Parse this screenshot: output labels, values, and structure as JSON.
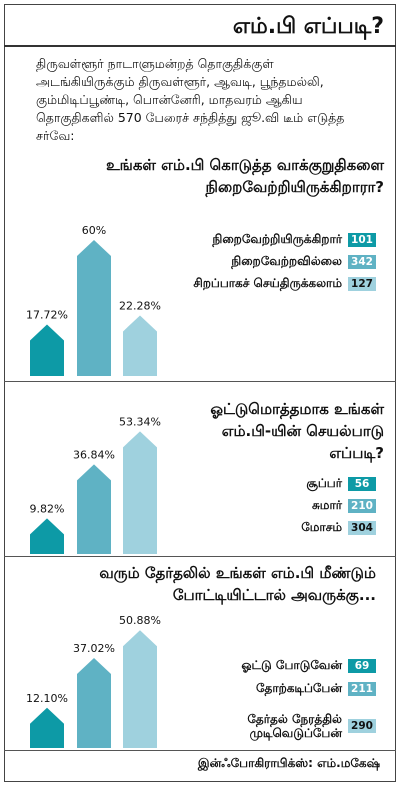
{
  "header": {
    "title": "எம்.பி எப்படி?"
  },
  "intro": "திருவள்ளூர் நாடாளுமன்றத் தொகுதிக்குள் அடங்கியிருக்கும் திருவள்ளூர், ஆவடி, பூந்தமல்லி, கும்மிடிப்பூண்டி, பொன்னேரி, மாதவரம் ஆகிய தொகுதிகளில் 570 பேரைச் சந்தித்து ஜூ.வி டீம் எடுத்த சர்வே:",
  "colors": {
    "c0": "#0d9aa6",
    "c1": "#5fb2c4",
    "c2": "#9fd1de"
  },
  "chart_data": [
    {
      "type": "bar",
      "question": "உங்கள் எம்.பி கொடுத்த வாக்குறுதிகளை நிறைவேற்றியிருக்கிறாரா?",
      "categories": [
        "நிறைவேற்றியிருக்கிறார்",
        "நிறைவேற்றவில்லை",
        "சிறப்பாகச் செய்திருக்கலாம்"
      ],
      "counts": [
        101,
        342,
        127
      ],
      "percent_labels": [
        "17.72%",
        "60%",
        "22.28%"
      ],
      "values": [
        17.72,
        60,
        22.28
      ]
    },
    {
      "type": "bar",
      "question": "ஓட்டுமொத்தமாக உங்கள் எம்.பி-யின் செயல்பாடு எப்படி?",
      "categories": [
        "சூப்பர்",
        "சுமார்",
        "மோசம்"
      ],
      "counts": [
        56,
        210,
        304
      ],
      "percent_labels": [
        "9.82%",
        "36.84%",
        "53.34%"
      ],
      "values": [
        9.82,
        36.84,
        53.34
      ]
    },
    {
      "type": "bar",
      "question": "வரும் தேர்தலில் உங்கள் எம்.பி மீண்டும் போட்டியிட்டால் அவருக்கு...",
      "categories": [
        "ஓட்டு போடுவேன்",
        "தோற்கடிப்பேன்",
        "தேர்தல் நேரத்தில் முடிவெடுப்பேன்"
      ],
      "counts": [
        69,
        211,
        290
      ],
      "percent_labels": [
        "12.10%",
        "37.02%",
        "50.88%"
      ],
      "values": [
        12.1,
        37.02,
        50.88
      ]
    }
  ],
  "credit": "இன்ஃபோகிராபிக்ஸ்: எம்.மகேஷ்"
}
